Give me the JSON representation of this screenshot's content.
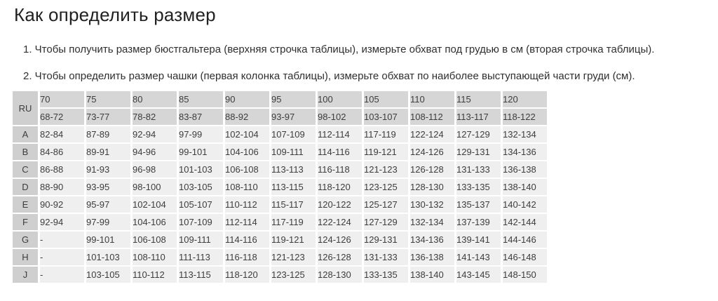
{
  "page": {
    "title": "Как определить размер",
    "instructions": [
      "1. Чтобы получить размер бюстгальтера (верхняя строчка таблицы), измерьте обхват под грудью в см (вторая строчка таблицы).",
      "2. Чтобы определить размер чашки (первая колонка таблицы), измерьте обхват по наиболее выступающей части груди (см)."
    ]
  },
  "table": {
    "corner_label": "RU",
    "band_sizes": [
      "70",
      "75",
      "80",
      "85",
      "90",
      "95",
      "100",
      "105",
      "110",
      "115",
      "120"
    ],
    "underbust_ranges": [
      "68-72",
      "73-77",
      "78-82",
      "83-87",
      "88-92",
      "93-97",
      "98-102",
      "103-107",
      "108-112",
      "113-117",
      "118-122"
    ],
    "cup_rows": [
      {
        "cup": "A",
        "values": [
          "82-84",
          "87-89",
          "92-94",
          "97-99",
          "102-104",
          "107-109",
          "112-114",
          "117-119",
          "122-124",
          "127-129",
          "132-134"
        ]
      },
      {
        "cup": "B",
        "values": [
          "84-86",
          "89-91",
          "94-96",
          "99-101",
          "104-106",
          "109-111",
          "114-116",
          "119-121",
          "124-126",
          "129-131",
          "134-136"
        ]
      },
      {
        "cup": "C",
        "values": [
          "86-88",
          "91-93",
          "96-98",
          "101-103",
          "106-108",
          "113-113",
          "116-118",
          "121-123",
          "126-128",
          "131-133",
          "136-138"
        ]
      },
      {
        "cup": "D",
        "values": [
          "88-90",
          "93-95",
          "98-100",
          "103-105",
          "108-110",
          "113-115",
          "118-120",
          "123-125",
          "128-130",
          "133-135",
          "138-140"
        ]
      },
      {
        "cup": "E",
        "values": [
          "90-92",
          "95-97",
          "102-104",
          "105-107",
          "110-112",
          "115-117",
          "120-122",
          "125-127",
          "130-132",
          "135-137",
          "140-142"
        ]
      },
      {
        "cup": "F",
        "values": [
          "92-94",
          "97-99",
          "104-106",
          "107-109",
          "112-114",
          "117-119",
          "122-124",
          "127-129",
          "132-134",
          "137-139",
          "142-144"
        ]
      },
      {
        "cup": "G",
        "values": [
          "-",
          "99-101",
          "106-108",
          "109-111",
          "114-116",
          "119-121",
          "124-126",
          "129-131",
          "134-136",
          "139-141",
          "144-146"
        ]
      },
      {
        "cup": "H",
        "values": [
          "-",
          "101-103",
          "108-110",
          "111-113",
          "116-118",
          "121-123",
          "126-128",
          "131-133",
          "136-138",
          "141-143",
          "146-148"
        ]
      },
      {
        "cup": "J",
        "values": [
          "-",
          "103-105",
          "110-112",
          "113-115",
          "118-120",
          "123-125",
          "128-130",
          "133-135",
          "138-140",
          "143-145",
          "148-150"
        ]
      }
    ]
  },
  "colors": {
    "page_background": "#ffffff",
    "title_text": "#212121",
    "body_text": "#2f2f2f",
    "table_text": "#3d3d3d",
    "corner_and_cup_background": "#cfcfcf",
    "header_background": "#d6d6d6",
    "data_cell_background": "#efefef"
  }
}
